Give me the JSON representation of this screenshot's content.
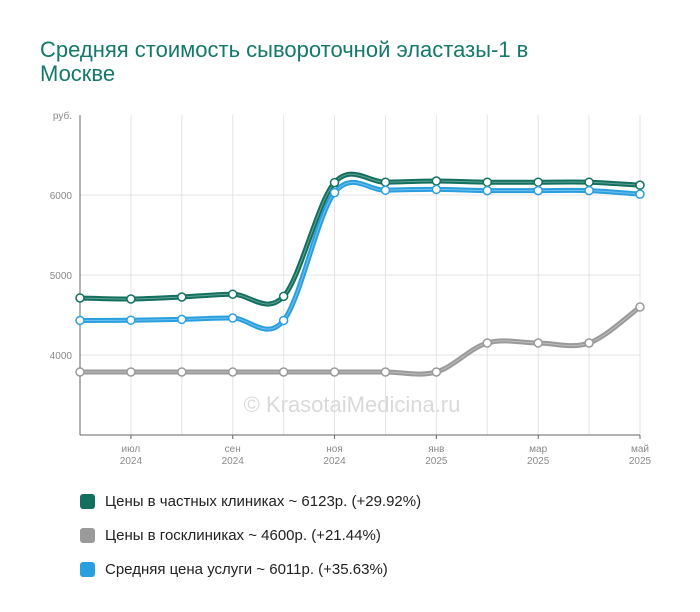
{
  "chart_data": {
    "type": "line",
    "title": "Средняя стоимость сывороточной эластазы-1 в Москве",
    "y_unit_label": "руб.",
    "ylim": [
      3000,
      7000
    ],
    "yticks": [
      4000,
      5000,
      6000
    ],
    "x_ticks": [
      {
        "month": "июл",
        "year": "2024"
      },
      {
        "month": "сен",
        "year": "2024"
      },
      {
        "month": "ноя",
        "year": "2024"
      },
      {
        "month": "янв",
        "year": "2025"
      },
      {
        "month": "мар",
        "year": "2025"
      },
      {
        "month": "май",
        "year": "2025"
      }
    ],
    "x": [
      "2024-06",
      "2024-07",
      "2024-08",
      "2024-09",
      "2024-10",
      "2024-11",
      "2024-12",
      "2025-01",
      "2025-02",
      "2025-03",
      "2025-04",
      "2025-05"
    ],
    "grid": true,
    "legend_position": "bottom",
    "series": [
      {
        "name": "Цены в частных клиниках ~ 6123р. (+29.92%)",
        "color": "#13705f",
        "values": [
          4713,
          4700,
          4725,
          4760,
          4733,
          6155,
          6160,
          6175,
          6160,
          6160,
          6160,
          6123
        ]
      },
      {
        "name": "Цены в госклиниках ~ 4600р. (+21.44%)",
        "color": "#9a9a9a",
        "values": [
          3788,
          3788,
          3788,
          3788,
          3788,
          3788,
          3788,
          3788,
          4150,
          4150,
          4150,
          4600
        ]
      },
      {
        "name": "Средняя цена услуги ~ 6011р. (+35.63%)",
        "color": "#2a9fe0",
        "values": [
          4432,
          4435,
          4445,
          4462,
          4432,
          6030,
          6060,
          6070,
          6055,
          6055,
          6055,
          6011
        ]
      }
    ],
    "watermark": "© KrasotaiMedicina.ru"
  }
}
